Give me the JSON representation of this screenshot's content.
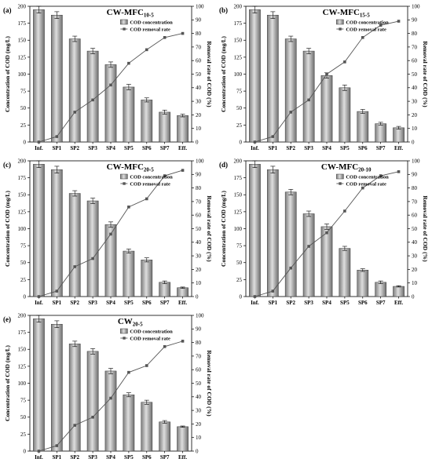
{
  "chart_data": [
    {
      "type": "bar",
      "panel": "(a)",
      "title": "CW-MFC",
      "title_sub": "10-5",
      "categories": [
        "Inf.",
        "SP1",
        "SP2",
        "SP3",
        "SP4",
        "SP5",
        "SP6",
        "SP7",
        "Eff."
      ],
      "ylabel": "Concentration of COD (mg/L)",
      "y2label": "Removal rate of COD (%)",
      "ylim": [
        0,
        200
      ],
      "y2lim": [
        0,
        100
      ],
      "series": [
        {
          "name": "COD concentration",
          "type": "bar",
          "values": [
            195,
            187,
            152,
            134,
            114,
            81,
            62,
            44,
            39
          ],
          "errors": [
            5,
            5,
            4,
            4,
            4,
            4,
            3,
            3,
            2
          ]
        },
        {
          "name": "COD removal rate",
          "type": "line",
          "axis": "right",
          "values": [
            0,
            4,
            22,
            31,
            42,
            58,
            68,
            77,
            80
          ]
        }
      ]
    },
    {
      "type": "bar",
      "panel": "(b)",
      "title": "CW-MFC",
      "title_sub": "15-5",
      "categories": [
        "Inf.",
        "SP1",
        "SP2",
        "SP3",
        "SP4",
        "SP5",
        "SP6",
        "SP7",
        "Eff."
      ],
      "ylabel": "Concentration of COD (mg/L)",
      "y2label": "Removal rate of COD (%)",
      "ylim": [
        0,
        200
      ],
      "y2lim": [
        0,
        100
      ],
      "series": [
        {
          "name": "COD concentration",
          "type": "bar",
          "values": [
            195,
            187,
            152,
            134,
            98,
            80,
            45,
            27,
            21
          ],
          "errors": [
            5,
            5,
            4,
            4,
            4,
            4,
            3,
            2,
            2
          ]
        },
        {
          "name": "COD removal rate",
          "type": "line",
          "axis": "right",
          "values": [
            0,
            4,
            22,
            31,
            50,
            59,
            77,
            86,
            89
          ]
        }
      ]
    },
    {
      "type": "bar",
      "panel": "(c)",
      "title": "CW-MFC",
      "title_sub": "20-5",
      "categories": [
        "Inf.",
        "SP1",
        "SP2",
        "SP3",
        "SP4",
        "SP5",
        "SP6",
        "SP7",
        "Eff."
      ],
      "ylabel": "Concentration of COD (mg/L)",
      "y2label": "Removal rate of COD (%)",
      "ylim": [
        0,
        200
      ],
      "y2lim": [
        0,
        100
      ],
      "series": [
        {
          "name": "COD concentration",
          "type": "bar",
          "values": [
            195,
            187,
            152,
            141,
            106,
            67,
            54,
            21,
            13
          ],
          "errors": [
            5,
            5,
            4,
            4,
            4,
            3,
            3,
            2,
            1
          ]
        },
        {
          "name": "COD removal rate",
          "type": "line",
          "axis": "right",
          "values": [
            0,
            4,
            22,
            28,
            46,
            66,
            72,
            89,
            93
          ]
        }
      ]
    },
    {
      "type": "bar",
      "panel": "(d)",
      "title": "CW-MFC",
      "title_sub": "20-10",
      "categories": [
        "Inf.",
        "SP1",
        "SP2",
        "SP3",
        "SP4",
        "SP5",
        "SP6",
        "SP7",
        "Eff."
      ],
      "ylabel": "Concentration of COD (mg/L)",
      "y2label": "Removal rate of COD (%)",
      "ylim": [
        0,
        200
      ],
      "y2lim": [
        0,
        100
      ],
      "series": [
        {
          "name": "COD concentration",
          "type": "bar",
          "values": [
            195,
            187,
            154,
            122,
            103,
            71,
            39,
            21,
            15
          ],
          "errors": [
            5,
            5,
            4,
            4,
            4,
            3,
            2,
            2,
            1
          ]
        },
        {
          "name": "COD removal rate",
          "type": "line",
          "axis": "right",
          "values": [
            0,
            4,
            21,
            37,
            47,
            63,
            80,
            89,
            92
          ]
        }
      ]
    },
    {
      "type": "bar",
      "panel": "(e)",
      "title": "CW",
      "title_sub": "20-5",
      "categories": [
        "Inf.",
        "SP1",
        "SP2",
        "SP3",
        "SP4",
        "SP5",
        "SP6",
        "SP7",
        "Eff."
      ],
      "ylabel": "Concentration of COD (mg/L)",
      "y2label": "Removal rate of COD (%)",
      "ylim": [
        0,
        200
      ],
      "y2lim": [
        0,
        100
      ],
      "series": [
        {
          "name": "COD concentration",
          "type": "bar",
          "values": [
            195,
            187,
            158,
            147,
            118,
            83,
            72,
            43,
            36
          ],
          "errors": [
            5,
            5,
            4,
            4,
            4,
            3,
            3,
            2,
            1
          ]
        },
        {
          "name": "COD removal rate",
          "type": "line",
          "axis": "right",
          "values": [
            0,
            4,
            19,
            25,
            39,
            58,
            63,
            77,
            81
          ]
        }
      ]
    }
  ]
}
